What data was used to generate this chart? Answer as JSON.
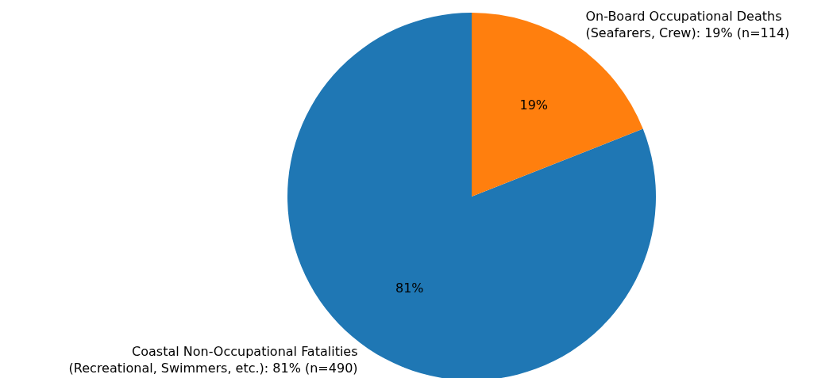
{
  "chart_data": {
    "type": "pie",
    "categories": [
      "Coastal Non-Occupational Fatalities\n(Recreational, Swimmers, etc.): 81% (n=490)",
      "On-Board Occupational Deaths\n(Seafarers, Crew): 19% (n=114)"
    ],
    "values": [
      81,
      19
    ],
    "colors": [
      "#1f77b4",
      "#ff7f0e"
    ],
    "value_labels": [
      "81%",
      "19%"
    ]
  }
}
